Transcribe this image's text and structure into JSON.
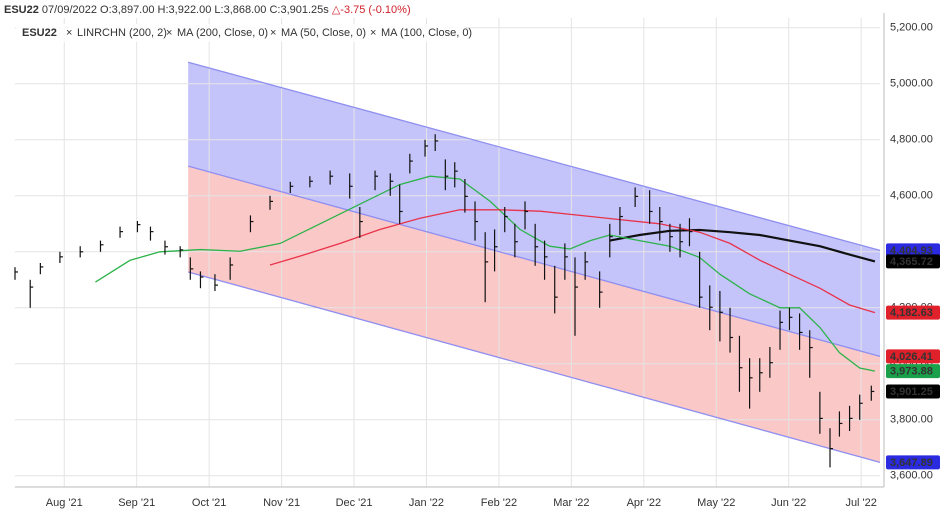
{
  "header": {
    "symbol": "ESU22",
    "date": "07/09/2022",
    "quote": "O:3,897.00 H:3,922.00 L:3,868.00 C:3,901.25s",
    "change": "△-3.75 (-0.10%)"
  },
  "chart_data": {
    "type": "ohlc",
    "title": "ESU22",
    "x": [
      0.32,
      0.53,
      0.67,
      0.94,
      1.22,
      1.5,
      1.77,
      2.01,
      2.19,
      2.39,
      2.6,
      2.74,
      2.88,
      3.08,
      3.29,
      3.57,
      3.84,
      4.12,
      4.39,
      4.67,
      4.94,
      5.08,
      5.29,
      5.5,
      5.63,
      5.77,
      5.98,
      6.12,
      6.26,
      6.39,
      6.53,
      6.67,
      6.81,
      6.94,
      7.08,
      7.22,
      7.36,
      7.5,
      7.63,
      7.77,
      7.91,
      8.05,
      8.19,
      8.39,
      8.53,
      8.67,
      8.88,
      9.08,
      9.22,
      9.36,
      9.5,
      9.63,
      9.77,
      9.91,
      10.05,
      10.19,
      10.32,
      10.46,
      10.6,
      10.74,
      10.88,
      11.01,
      11.15,
      11.29,
      11.43,
      11.57,
      11.7,
      11.84,
      11.98,
      12.14
    ],
    "high": [
      4345,
      4300,
      4360,
      4400,
      4420,
      4440,
      4490,
      4510,
      4490,
      4440,
      4420,
      4380,
      4330,
      4320,
      4380,
      4530,
      4600,
      4650,
      4670,
      4690,
      4680,
      4560,
      4690,
      4680,
      4640,
      4750,
      4800,
      4820,
      4730,
      4720,
      4660,
      4580,
      4470,
      4480,
      4560,
      4500,
      4580,
      4500,
      4440,
      4350,
      4430,
      4380,
      4400,
      4330,
      4500,
      4560,
      4630,
      4620,
      4560,
      4500,
      4500,
      4520,
      4400,
      4280,
      4260,
      4200,
      4100,
      4020,
      4020,
      4060,
      4190,
      4200,
      4180,
      4120,
      3900,
      3770,
      3830,
      3850,
      3890,
      3922
    ],
    "low": [
      4300,
      4200,
      4320,
      4360,
      4380,
      4400,
      4450,
      4470,
      4440,
      4390,
      4380,
      4300,
      4270,
      4260,
      4300,
      4470,
      4550,
      4610,
      4630,
      4640,
      4590,
      4450,
      4620,
      4600,
      4500,
      4680,
      4740,
      4760,
      4620,
      4630,
      4540,
      4440,
      4220,
      4330,
      4470,
      4380,
      4480,
      4350,
      4300,
      4180,
      4300,
      4100,
      4300,
      4200,
      4380,
      4460,
      4560,
      4500,
      4440,
      4400,
      4380,
      4420,
      4200,
      4120,
      4080,
      4040,
      3900,
      3840,
      3900,
      3950,
      4050,
      4120,
      4050,
      3950,
      3750,
      3630,
      3740,
      3760,
      3800,
      3868
    ],
    "close": [
      4328,
      4274,
      4346,
      4382,
      4400,
      4425,
      4472,
      4497,
      4472,
      4418,
      4407,
      4339,
      4310,
      4281,
      4353,
      4508,
      4580,
      4634,
      4652,
      4670,
      4634,
      4508,
      4670,
      4652,
      4544,
      4724,
      4778,
      4796,
      4670,
      4688,
      4598,
      4508,
      4364,
      4418,
      4526,
      4436,
      4544,
      4418,
      4382,
      4238,
      4382,
      4274,
      4364,
      4256,
      4454,
      4526,
      4598,
      4544,
      4508,
      4454,
      4436,
      4472,
      4238,
      4202,
      4184,
      4094,
      3986,
      3950,
      3968,
      4004,
      4148,
      4166,
      4112,
      4058,
      3805,
      3697,
      3787,
      3805,
      3859,
      3901.25
    ],
    "color": "#111111",
    "channel": {
      "name": "LINRCHN (200, 2)",
      "x": [
        2.71,
        12.26
      ],
      "upper": [
        5077,
        4404.93
      ],
      "middle": [
        4706,
        4026.41
      ],
      "lower": [
        4328,
        3647.89
      ],
      "upper_fill": "#c4c4fb",
      "lower_fill": "#fbc8c8",
      "line_color": "#8f8ff0"
    },
    "series": [
      {
        "name": "MA (200, Close, 0)",
        "color": "#111111",
        "x": [
          8.53,
          8.94,
          9.36,
          9.77,
          10.19,
          10.6,
          11.01,
          11.43,
          11.84,
          12.19
        ],
        "values": [
          4440,
          4460,
          4475,
          4478,
          4470,
          4460,
          4440,
          4420,
          4390,
          4365.72
        ]
      },
      {
        "name": "MA (50, Close, 0)",
        "color": "#2db34a",
        "x": [
          1.43,
          1.91,
          2.32,
          2.88,
          3.43,
          3.98,
          4.53,
          5.08,
          5.63,
          6.05,
          6.46,
          6.88,
          7.29,
          7.7,
          7.98,
          8.26,
          8.53,
          8.94,
          9.36,
          9.77,
          10.05,
          10.46,
          10.88,
          11.15,
          11.43,
          11.7,
          11.98,
          12.19
        ],
        "values": [
          4292,
          4370,
          4400,
          4408,
          4402,
          4430,
          4500,
          4570,
          4640,
          4670,
          4660,
          4580,
          4480,
          4420,
          4410,
          4440,
          4460,
          4440,
          4420,
          4380,
          4320,
          4250,
          4200,
          4200,
          4130,
          4040,
          3985,
          3973.88
        ]
      },
      {
        "name": "MA (100, Close, 0)",
        "color": "#e8334a",
        "x": [
          3.84,
          4.26,
          4.81,
          5.36,
          5.91,
          6.46,
          7.01,
          7.57,
          8.12,
          8.67,
          9.22,
          9.77,
          10.19,
          10.6,
          11.01,
          11.43,
          11.84,
          12.19
        ],
        "values": [
          4353,
          4385,
          4430,
          4480,
          4520,
          4550,
          4550,
          4545,
          4530,
          4515,
          4500,
          4470,
          4430,
          4370,
          4320,
          4270,
          4210,
          4182.63
        ]
      }
    ],
    "price_tags": [
      {
        "value": 4404.93,
        "label": "4,404.93",
        "color": "#2a2ae0"
      },
      {
        "value": 4365.72,
        "label": "4,365.72",
        "color": "#000000"
      },
      {
        "value": 4182.63,
        "label": "4,182.63",
        "color": "#e0202a"
      },
      {
        "value": 4026.41,
        "label": "4,026.41",
        "color": "#e0202a"
      },
      {
        "value": 3973.88,
        "label": "3,973.88",
        "color": "#1aa04a"
      },
      {
        "value": 3901.25,
        "label": "3,901.25",
        "color": "#000000"
      },
      {
        "value": 3647.89,
        "label": "3,647.89",
        "color": "#2a2ae0"
      }
    ],
    "xlim": [
      0.32,
      12.26
    ],
    "xticks": [
      {
        "value": 1,
        "label": "Aug '21"
      },
      {
        "value": 2,
        "label": "Sep '21"
      },
      {
        "value": 3,
        "label": "Oct '21"
      },
      {
        "value": 4,
        "label": "Nov '21"
      },
      {
        "value": 5,
        "label": "Dec '21"
      },
      {
        "value": 6,
        "label": "Jan '22"
      },
      {
        "value": 7,
        "label": "Feb '22"
      },
      {
        "value": 8,
        "label": "Mar '22"
      },
      {
        "value": 9,
        "label": "Apr '22"
      },
      {
        "value": 10,
        "label": "May '22"
      },
      {
        "value": 11,
        "label": "Jun '22"
      },
      {
        "value": 12,
        "label": "Jul '22"
      }
    ],
    "ylim": [
      3560,
      5235
    ],
    "yticks": [
      {
        "value": 5200,
        "label": "5,200.00"
      },
      {
        "value": 5000,
        "label": "5,000.00"
      },
      {
        "value": 4800,
        "label": "4,800.00"
      },
      {
        "value": 4600,
        "label": "4,600.00"
      },
      {
        "value": 4400,
        "label": "4,400.00"
      },
      {
        "value": 4200,
        "label": "4,200.00"
      },
      {
        "value": 4000,
        "label": "4,000.00"
      },
      {
        "value": 3800,
        "label": "3,800.00"
      },
      {
        "value": 3600,
        "label": "3,600.00"
      }
    ],
    "grid": true
  }
}
